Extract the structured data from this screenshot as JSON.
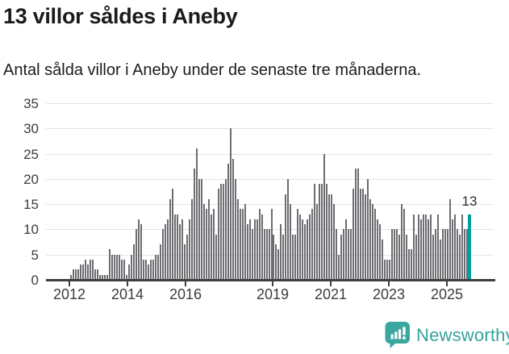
{
  "header": {
    "title": "13 villor såldes i Aneby",
    "subtitle": "Antal sålda villor i Aneby under de senaste tre månaderna."
  },
  "chart_data": {
    "type": "bar",
    "title": "13 villor såldes i Aneby",
    "subtitle": "Antal sålda villor i Aneby under de senaste tre månaderna.",
    "xlabel": "",
    "ylabel": "",
    "ylim": [
      0,
      35
    ],
    "y_ticks": [
      0,
      5,
      10,
      15,
      20,
      25,
      30,
      35
    ],
    "x_tick_years": [
      2012,
      2014,
      2016,
      2019,
      2021,
      2023,
      2025
    ],
    "grid": true,
    "legend_position": "none",
    "bar_color": "#6d6d72",
    "highlight_color": "#00a0a2",
    "values": [
      1,
      2,
      2,
      2,
      3,
      3,
      4,
      3,
      4,
      4,
      2,
      2,
      1,
      1,
      1,
      1,
      6,
      5,
      5,
      5,
      5,
      4,
      4,
      1,
      3,
      5,
      7,
      10,
      12,
      11,
      4,
      4,
      3,
      4,
      4,
      5,
      5,
      7,
      10,
      11,
      12,
      16,
      18,
      13,
      13,
      11,
      12,
      7,
      9,
      12,
      16,
      22,
      26,
      20,
      20,
      15,
      14,
      16,
      13,
      14,
      9,
      18,
      19,
      19,
      20,
      23,
      30,
      24,
      20,
      16,
      14,
      14,
      15,
      11,
      12,
      10,
      12,
      12,
      14,
      13,
      10,
      10,
      10,
      14,
      9,
      7,
      6,
      11,
      9,
      17,
      20,
      15,
      9,
      9,
      14,
      13,
      12,
      11,
      12,
      13,
      14,
      19,
      15,
      19,
      19,
      25,
      19,
      17,
      17,
      15,
      10,
      5,
      9,
      10,
      12,
      10,
      10,
      18,
      22,
      22,
      18,
      18,
      17,
      20,
      16,
      15,
      14,
      12,
      11,
      8,
      4,
      4,
      4,
      10,
      10,
      10,
      9,
      15,
      14,
      9,
      6,
      6,
      13,
      9,
      13,
      12,
      13,
      13,
      12,
      13,
      9,
      10,
      13,
      8,
      10,
      10,
      10,
      16,
      12,
      13,
      10,
      9,
      13,
      10,
      10,
      13
    ],
    "last_bar_annotation": "13",
    "last_bar_value": 13
  },
  "footer": {
    "brand": "Newsworthy",
    "brand_color": "#35a39c",
    "logo_icon": "bar-chart-speech-bubble-icon"
  }
}
